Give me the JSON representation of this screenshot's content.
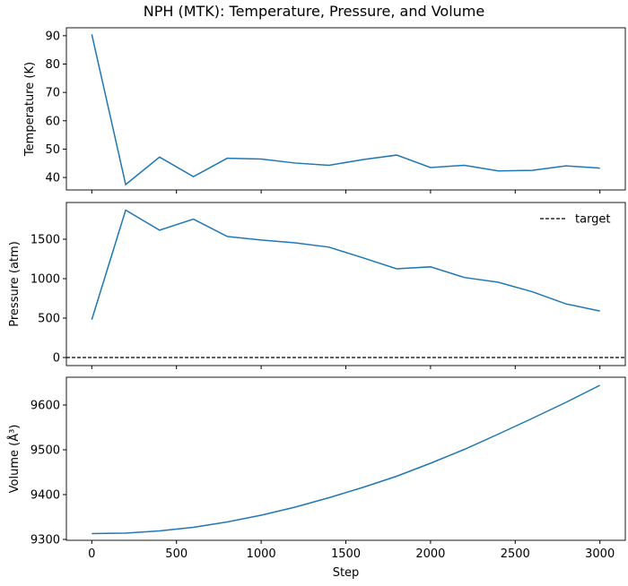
{
  "chart_data": [
    {
      "type": "line",
      "title": "NPH (MTK): Temperature, Pressure, and Volume",
      "xlabel": "",
      "ylabel": "Temperature (K)",
      "x": [
        0,
        200,
        400,
        600,
        800,
        1000,
        1200,
        1400,
        1600,
        1800,
        2000,
        2200,
        2400,
        2600,
        2800,
        3000
      ],
      "values": [
        90.5,
        37.5,
        47.2,
        40.3,
        46.8,
        46.5,
        45.1,
        44.3,
        46.3,
        47.9,
        43.5,
        44.3,
        42.3,
        42.5,
        44.1,
        43.3
      ],
      "xlim": [
        -150,
        3150
      ],
      "ylim": [
        35.6,
        92.8
      ],
      "yticks": [
        40,
        50,
        60,
        70,
        80,
        90
      ],
      "color": "#1f77b4"
    },
    {
      "type": "line",
      "xlabel": "",
      "ylabel": "Pressure (atm)",
      "x": [
        0,
        200,
        400,
        600,
        800,
        1000,
        1200,
        1400,
        1600,
        1800,
        2000,
        2200,
        2400,
        2600,
        2800,
        3000
      ],
      "values": [
        480,
        1870,
        1615,
        1755,
        1535,
        1490,
        1455,
        1400,
        1265,
        1125,
        1150,
        1015,
        955,
        835,
        680,
        590
      ],
      "target": {
        "name": "target",
        "value": 0,
        "style": "dashed",
        "color": "#000000"
      },
      "legend": "top-right",
      "xlim": [
        -150,
        3150
      ],
      "ylim": [
        -102,
        1966
      ],
      "yticks": [
        0,
        500,
        1000,
        1500
      ],
      "color": "#1f77b4"
    },
    {
      "type": "line",
      "xlabel": "Step",
      "ylabel": "Volume (Å³)",
      "x": [
        0,
        200,
        400,
        600,
        800,
        1000,
        1200,
        1400,
        1600,
        1800,
        2000,
        2200,
        2400,
        2600,
        2800,
        3000
      ],
      "values": [
        9313,
        9314,
        9319,
        9327,
        9339,
        9354,
        9372,
        9393,
        9416,
        9441,
        9470,
        9501,
        9535,
        9570,
        9606,
        9644
      ],
      "xlim": [
        -150,
        3150
      ],
      "ylim": [
        9298,
        9662
      ],
      "yticks": [
        9300,
        9400,
        9500,
        9600
      ],
      "xticks": [
        0,
        500,
        1000,
        1500,
        2000,
        2500,
        3000
      ],
      "color": "#1f77b4"
    }
  ]
}
